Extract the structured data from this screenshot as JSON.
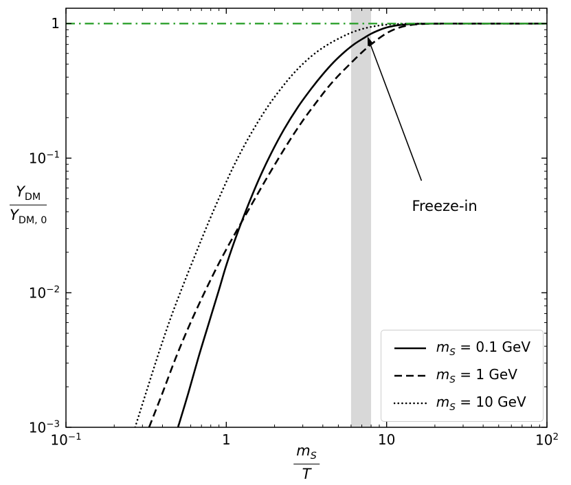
{
  "chart_data": {
    "type": "line",
    "x_scale": "log",
    "y_scale": "log",
    "xlim": [
      0.1,
      100
    ],
    "ylim": [
      0.001,
      1.3
    ],
    "grid": false,
    "xlabel": {
      "num": "m",
      "num_sub": "S",
      "den": "T"
    },
    "ylabel": {
      "num": "Y",
      "num_sub": "DM",
      "den": "Y",
      "den_sub": "DM, 0"
    },
    "x_ticks": [
      {
        "value": 0.1,
        "base": "10",
        "exp": "−1"
      },
      {
        "value": 1,
        "text": "1"
      },
      {
        "value": 10,
        "text": "10"
      },
      {
        "value": 100,
        "base": "10",
        "exp": "2"
      }
    ],
    "y_ticks": [
      {
        "value": 0.001,
        "base": "10",
        "exp": "−3"
      },
      {
        "value": 0.01,
        "base": "10",
        "exp": "−2"
      },
      {
        "value": 0.1,
        "base": "10",
        "exp": "−1"
      },
      {
        "value": 1,
        "text": "1"
      }
    ],
    "reference_line": {
      "y": 1.0,
      "color": "#2ca02c",
      "style": "dashdot"
    },
    "band": {
      "x_start": 6.0,
      "x_end": 8.0,
      "color": "#c3c3c3",
      "opacity": 0.65
    },
    "annotation": {
      "text": "Freeze-in",
      "text_xy": [
        23,
        0.044
      ],
      "arrow_from": [
        16.5,
        0.068
      ],
      "arrow_to": [
        7.6,
        0.8
      ]
    },
    "legend": {
      "position": "lower right"
    },
    "series": [
      {
        "name": "mS = 0.1 GeV",
        "style": "solid",
        "color": "#000000",
        "label_var": "m",
        "label_sub": "S",
        "label_rest": " = 0.1 GeV",
        "points": [
          [
            0.5,
            0.001
          ],
          [
            0.58,
            0.0018
          ],
          [
            0.67,
            0.0033
          ],
          [
            0.78,
            0.006
          ],
          [
            0.9,
            0.0105
          ],
          [
            1.0,
            0.016
          ],
          [
            1.15,
            0.026
          ],
          [
            1.35,
            0.043
          ],
          [
            1.6,
            0.07
          ],
          [
            1.9,
            0.108
          ],
          [
            2.3,
            0.165
          ],
          [
            2.8,
            0.24
          ],
          [
            3.4,
            0.33
          ],
          [
            4.0,
            0.42
          ],
          [
            4.7,
            0.52
          ],
          [
            5.5,
            0.62
          ],
          [
            6.3,
            0.705
          ],
          [
            7.2,
            0.78
          ],
          [
            8.0,
            0.84
          ],
          [
            9.0,
            0.895
          ],
          [
            10.0,
            0.935
          ],
          [
            11.0,
            0.96
          ],
          [
            12.0,
            0.975
          ],
          [
            14.0,
            0.991
          ],
          [
            16.0,
            0.997
          ],
          [
            20.0,
            0.9995
          ],
          [
            25.0,
            1.0
          ],
          [
            40.0,
            1.0
          ],
          [
            100.0,
            1.0
          ]
        ]
      },
      {
        "name": "mS = 1 GeV",
        "style": "dashed",
        "color": "#000000",
        "label_var": "m",
        "label_sub": "S",
        "label_rest": " = 1 GeV",
        "points": [
          [
            0.33,
            0.001
          ],
          [
            0.4,
            0.0018
          ],
          [
            0.48,
            0.0032
          ],
          [
            0.58,
            0.0055
          ],
          [
            0.7,
            0.009
          ],
          [
            0.85,
            0.0145
          ],
          [
            1.0,
            0.021
          ],
          [
            1.2,
            0.031
          ],
          [
            1.45,
            0.046
          ],
          [
            1.75,
            0.068
          ],
          [
            2.1,
            0.098
          ],
          [
            2.5,
            0.137
          ],
          [
            3.0,
            0.19
          ],
          [
            3.6,
            0.255
          ],
          [
            4.3,
            0.335
          ],
          [
            5.0,
            0.41
          ],
          [
            6.0,
            0.51
          ],
          [
            7.0,
            0.61
          ],
          [
            8.0,
            0.7
          ],
          [
            9.0,
            0.78
          ],
          [
            10.0,
            0.848
          ],
          [
            11.0,
            0.898
          ],
          [
            12.0,
            0.933
          ],
          [
            13.0,
            0.958
          ],
          [
            15.0,
            0.985
          ],
          [
            18.0,
            0.996
          ],
          [
            22.0,
            0.9993
          ],
          [
            30.0,
            1.0
          ],
          [
            100.0,
            1.0
          ]
        ]
      },
      {
        "name": "mS = 10 GeV",
        "style": "dotted",
        "color": "#000000",
        "label_var": "m",
        "label_sub": "S",
        "label_rest": " = 10 GeV",
        "points": [
          [
            0.27,
            0.001
          ],
          [
            0.32,
            0.0019
          ],
          [
            0.38,
            0.0036
          ],
          [
            0.45,
            0.0065
          ],
          [
            0.54,
            0.0115
          ],
          [
            0.65,
            0.02
          ],
          [
            0.78,
            0.034
          ],
          [
            0.93,
            0.055
          ],
          [
            1.1,
            0.085
          ],
          [
            1.3,
            0.125
          ],
          [
            1.55,
            0.18
          ],
          [
            1.85,
            0.25
          ],
          [
            2.2,
            0.33
          ],
          [
            2.6,
            0.42
          ],
          [
            3.1,
            0.52
          ],
          [
            3.7,
            0.62
          ],
          [
            4.4,
            0.71
          ],
          [
            5.2,
            0.79
          ],
          [
            6.0,
            0.855
          ],
          [
            7.0,
            0.91
          ],
          [
            8.0,
            0.945
          ],
          [
            9.0,
            0.968
          ],
          [
            10.0,
            0.982
          ],
          [
            12.0,
            0.994
          ],
          [
            14.0,
            0.998
          ],
          [
            18.0,
            1.0
          ],
          [
            40.0,
            1.0
          ],
          [
            100.0,
            1.0
          ]
        ]
      }
    ]
  }
}
